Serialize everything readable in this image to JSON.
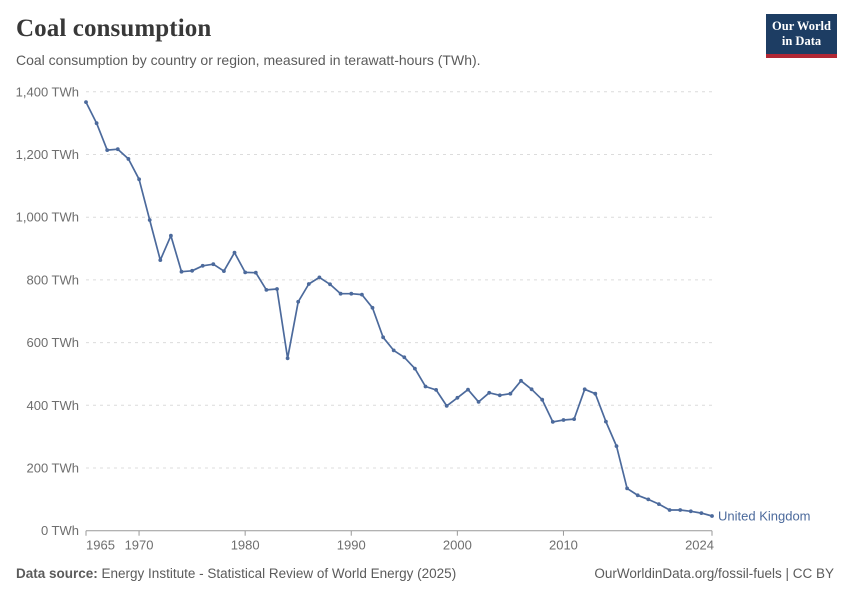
{
  "header": {
    "title": "Coal consumption",
    "subtitle": "Coal consumption by country or region, measured in terawatt-hours (TWh)."
  },
  "logo": {
    "line1": "Our World",
    "line2": "in Data",
    "bg_color": "#1d3d63",
    "stripe_color": "#b12734"
  },
  "chart_data": {
    "type": "line",
    "title": "Coal consumption",
    "subtitle": "Coal consumption by country or region, measured in terawatt-hours (TWh).",
    "xlabel": "",
    "ylabel": "TWh",
    "xlim": [
      1965,
      2024
    ],
    "ylim": [
      0,
      1400
    ],
    "grid": "horizontal-dashed",
    "legend_position": "end-of-line-label",
    "colors": {
      "line": "#4c6a9c",
      "grid": "#dcdcdc",
      "axis": "#999999",
      "tick_label": "#6e6e6e"
    },
    "y_ticks": [
      {
        "v": 0,
        "label": "0 TWh"
      },
      {
        "v": 200,
        "label": "200 TWh"
      },
      {
        "v": 400,
        "label": "400 TWh"
      },
      {
        "v": 600,
        "label": "600 TWh"
      },
      {
        "v": 800,
        "label": "800 TWh"
      },
      {
        "v": 1000,
        "label": "1,000 TWh"
      },
      {
        "v": 1200,
        "label": "1,200 TWh"
      },
      {
        "v": 1400,
        "label": "1,400 TWh"
      }
    ],
    "x_ticks": [
      {
        "v": 1965,
        "label": "1965"
      },
      {
        "v": 1970,
        "label": "1970"
      },
      {
        "v": 1980,
        "label": "1980"
      },
      {
        "v": 1990,
        "label": "1990"
      },
      {
        "v": 2000,
        "label": "2000"
      },
      {
        "v": 2010,
        "label": "2010"
      },
      {
        "v": 2024,
        "label": "2024"
      }
    ],
    "series": [
      {
        "name": "United Kingdom",
        "color": "#4c6a9c",
        "points": [
          [
            1965,
            1367
          ],
          [
            1966,
            1300
          ],
          [
            1967,
            1214
          ],
          [
            1968,
            1217
          ],
          [
            1969,
            1186
          ],
          [
            1970,
            1121
          ],
          [
            1971,
            991
          ],
          [
            1972,
            863
          ],
          [
            1973,
            941
          ],
          [
            1974,
            826
          ],
          [
            1975,
            829
          ],
          [
            1976,
            845
          ],
          [
            1977,
            850
          ],
          [
            1978,
            828
          ],
          [
            1979,
            887
          ],
          [
            1980,
            824
          ],
          [
            1981,
            823
          ],
          [
            1982,
            768
          ],
          [
            1983,
            771
          ],
          [
            1984,
            550
          ],
          [
            1985,
            730
          ],
          [
            1986,
            787
          ],
          [
            1987,
            808
          ],
          [
            1988,
            786
          ],
          [
            1989,
            756
          ],
          [
            1990,
            756
          ],
          [
            1991,
            753
          ],
          [
            1992,
            711
          ],
          [
            1993,
            617
          ],
          [
            1994,
            575
          ],
          [
            1995,
            553
          ],
          [
            1996,
            517
          ],
          [
            1997,
            460
          ],
          [
            1998,
            449
          ],
          [
            1999,
            398
          ],
          [
            2000,
            424
          ],
          [
            2001,
            450
          ],
          [
            2002,
            411
          ],
          [
            2003,
            440
          ],
          [
            2004,
            432
          ],
          [
            2005,
            437
          ],
          [
            2006,
            478
          ],
          [
            2007,
            451
          ],
          [
            2008,
            418
          ],
          [
            2009,
            347
          ],
          [
            2010,
            353
          ],
          [
            2011,
            356
          ],
          [
            2012,
            451
          ],
          [
            2013,
            437
          ],
          [
            2014,
            348
          ],
          [
            2015,
            270
          ],
          [
            2016,
            135
          ],
          [
            2017,
            113
          ],
          [
            2018,
            100
          ],
          [
            2019,
            85
          ],
          [
            2020,
            66
          ],
          [
            2021,
            66
          ],
          [
            2022,
            62
          ],
          [
            2023,
            56
          ],
          [
            2024,
            47
          ]
        ]
      }
    ]
  },
  "footer": {
    "source_label": "Data source:",
    "source_text": " Energy Institute - Statistical Review of World Energy (2025)",
    "right_text": "OurWorldinData.org/fossil-fuels | CC BY"
  }
}
